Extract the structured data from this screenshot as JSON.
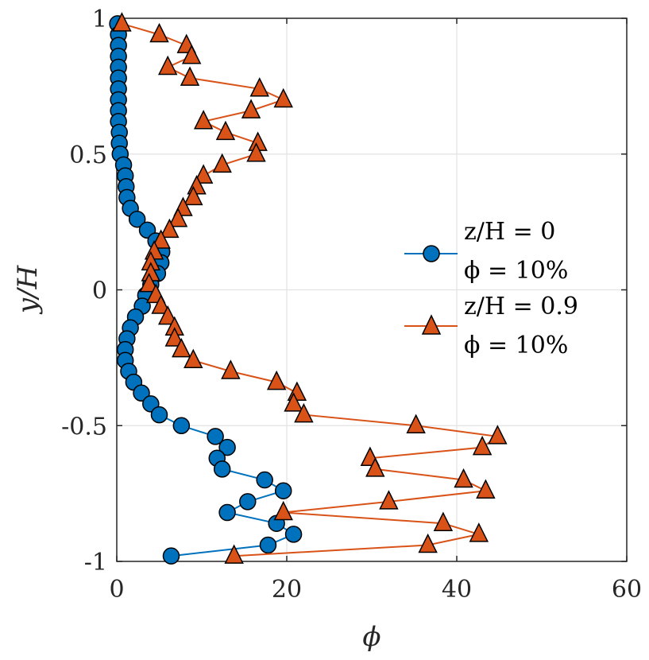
{
  "chart_data": {
    "type": "line",
    "xlabel": "ϕ",
    "ylabel": "y/H",
    "xlim": [
      0,
      60
    ],
    "ylim": [
      -1,
      1
    ],
    "x_ticks": [
      "0",
      "20",
      "40",
      "60"
    ],
    "y_ticks": [
      "-1",
      "-0.5",
      "0",
      "0.5",
      "1"
    ],
    "grid": true,
    "legend_position": "right",
    "series": [
      {
        "name_lines": [
          "z/H = 0",
          "ϕ = 10%"
        ],
        "color": "#0072BD",
        "line_color": "#0072BD",
        "marker": "circle",
        "points": [
          [
            0.1,
            0.98
          ],
          [
            0.2,
            0.94
          ],
          [
            0.2,
            0.9
          ],
          [
            0.2,
            0.86
          ],
          [
            0.2,
            0.82
          ],
          [
            0.2,
            0.78
          ],
          [
            0.2,
            0.74
          ],
          [
            0.2,
            0.7
          ],
          [
            0.2,
            0.66
          ],
          [
            0.2,
            0.62
          ],
          [
            0.3,
            0.58
          ],
          [
            0.3,
            0.54
          ],
          [
            0.4,
            0.5
          ],
          [
            0.8,
            0.46
          ],
          [
            1.0,
            0.42
          ],
          [
            1.1,
            0.38
          ],
          [
            1.2,
            0.34
          ],
          [
            1.6,
            0.3
          ],
          [
            2.4,
            0.26
          ],
          [
            3.6,
            0.22
          ],
          [
            4.6,
            0.18
          ],
          [
            5.3,
            0.14
          ],
          [
            5.2,
            0.1
          ],
          [
            4.8,
            0.06
          ],
          [
            4.0,
            0.02
          ],
          [
            3.4,
            -0.02
          ],
          [
            3.0,
            -0.06
          ],
          [
            2.2,
            -0.1
          ],
          [
            1.6,
            -0.14
          ],
          [
            1.2,
            -0.18
          ],
          [
            1.0,
            -0.22
          ],
          [
            1.0,
            -0.26
          ],
          [
            1.4,
            -0.3
          ],
          [
            2.0,
            -0.34
          ],
          [
            2.9,
            -0.38
          ],
          [
            4.0,
            -0.42
          ],
          [
            5.0,
            -0.46
          ],
          [
            7.6,
            -0.5
          ],
          [
            11.6,
            -0.54
          ],
          [
            13.0,
            -0.58
          ],
          [
            11.8,
            -0.62
          ],
          [
            12.4,
            -0.66
          ],
          [
            17.4,
            -0.7
          ],
          [
            19.6,
            -0.74
          ],
          [
            15.4,
            -0.78
          ],
          [
            13.0,
            -0.82
          ],
          [
            18.8,
            -0.86
          ],
          [
            20.8,
            -0.9
          ],
          [
            17.8,
            -0.94
          ],
          [
            6.4,
            -0.98
          ]
        ]
      },
      {
        "name_lines": [
          "z/H = 0.9",
          "ϕ = 10%"
        ],
        "color": "#D95319",
        "line_color": "#D95319",
        "marker": "triangle",
        "points": [
          [
            0.6,
            0.98
          ],
          [
            5.0,
            0.94
          ],
          [
            8.2,
            0.9
          ],
          [
            8.8,
            0.86
          ],
          [
            6.0,
            0.82
          ],
          [
            8.6,
            0.78
          ],
          [
            16.8,
            0.74
          ],
          [
            19.6,
            0.7
          ],
          [
            15.8,
            0.66
          ],
          [
            10.2,
            0.62
          ],
          [
            12.8,
            0.58
          ],
          [
            16.6,
            0.54
          ],
          [
            16.4,
            0.5
          ],
          [
            12.4,
            0.46
          ],
          [
            10.2,
            0.42
          ],
          [
            9.4,
            0.38
          ],
          [
            9.0,
            0.34
          ],
          [
            7.8,
            0.3
          ],
          [
            7.2,
            0.26
          ],
          [
            6.2,
            0.22
          ],
          [
            5.2,
            0.18
          ],
          [
            4.4,
            0.14
          ],
          [
            4.0,
            0.1
          ],
          [
            4.0,
            0.06
          ],
          [
            3.8,
            0.02
          ],
          [
            4.6,
            -0.02
          ],
          [
            5.2,
            -0.06
          ],
          [
            6.0,
            -0.1
          ],
          [
            6.8,
            -0.14
          ],
          [
            6.8,
            -0.18
          ],
          [
            7.6,
            -0.22
          ],
          [
            9.0,
            -0.26
          ],
          [
            13.4,
            -0.3
          ],
          [
            18.8,
            -0.34
          ],
          [
            21.2,
            -0.38
          ],
          [
            20.8,
            -0.42
          ],
          [
            22.0,
            -0.46
          ],
          [
            35.2,
            -0.5
          ],
          [
            44.8,
            -0.54
          ],
          [
            43.0,
            -0.58
          ],
          [
            29.8,
            -0.62
          ],
          [
            30.4,
            -0.66
          ],
          [
            40.8,
            -0.7
          ],
          [
            43.4,
            -0.74
          ],
          [
            32.0,
            -0.78
          ],
          [
            19.6,
            -0.82
          ],
          [
            38.4,
            -0.86
          ],
          [
            42.6,
            -0.9
          ],
          [
            36.6,
            -0.94
          ],
          [
            13.8,
            -0.98
          ]
        ]
      }
    ]
  }
}
